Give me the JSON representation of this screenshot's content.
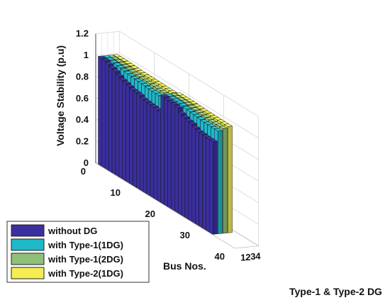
{
  "chart_data": {
    "type": "bar",
    "bar_style": "3d",
    "x_axis": {
      "label": "Bus Nos.",
      "ticks": [
        "0",
        "10",
        "20",
        "30",
        "40"
      ],
      "range": [
        0,
        40
      ]
    },
    "y_axis": {
      "label": "Type-1 & Type-2 DG",
      "ticks": [
        "1",
        "2",
        "3",
        "4"
      ]
    },
    "z_axis": {
      "label": "Voltage Stability (p.u)",
      "ticks": [
        "0",
        "0.2",
        "0.4",
        "0.6",
        "0.8",
        "1",
        "1.2"
      ],
      "range": [
        0,
        1.2
      ]
    },
    "grid": true,
    "legend": {
      "position": "bottom-left"
    },
    "categories": [
      1,
      2,
      3,
      4,
      5,
      6,
      7,
      8,
      9,
      10,
      11,
      12,
      13,
      14,
      15,
      16,
      17,
      18,
      19,
      20,
      21,
      22,
      23,
      24,
      25,
      26,
      27,
      28,
      29,
      30,
      31,
      32,
      33
    ],
    "series": [
      {
        "name": "without DG",
        "color": "#3a2f9e",
        "values": [
          1.0,
          0.997,
          0.983,
          0.968,
          0.956,
          0.933,
          0.915,
          0.906,
          0.894,
          0.882,
          0.879,
          0.874,
          0.857,
          0.851,
          0.847,
          0.845,
          0.838,
          0.835,
          0.997,
          0.987,
          0.985,
          0.984,
          0.976,
          0.94,
          0.925,
          0.91,
          0.905,
          0.885,
          0.87,
          0.867,
          0.862,
          0.861,
          0.86
        ]
      },
      {
        "name": "with Type-1(1DG)",
        "color": "#1fb8c9",
        "values": [
          1.0,
          0.999,
          0.995,
          0.99,
          0.986,
          0.978,
          0.972,
          0.969,
          0.965,
          0.961,
          0.96,
          0.958,
          0.952,
          0.95,
          0.949,
          0.948,
          0.946,
          0.945,
          0.999,
          0.996,
          0.995,
          0.995,
          0.992,
          0.98,
          0.975,
          0.97,
          0.968,
          0.962,
          0.957,
          0.956,
          0.955,
          0.954,
          0.954
        ]
      },
      {
        "name": "with Type-1(2DG)",
        "color": "#8fc07a",
        "values": [
          1.0,
          1.0,
          0.997,
          0.994,
          0.991,
          0.986,
          0.982,
          0.98,
          0.978,
          0.975,
          0.975,
          0.974,
          0.97,
          0.969,
          0.968,
          0.968,
          0.966,
          0.966,
          1.0,
          0.998,
          0.998,
          0.997,
          0.995,
          0.988,
          0.985,
          0.982,
          0.98,
          0.977,
          0.974,
          0.973,
          0.972,
          0.972,
          0.972
        ]
      },
      {
        "name": "with Type-2(1DG)",
        "color": "#f5ee52",
        "values": [
          1.0,
          1.0,
          0.999,
          0.997,
          0.996,
          0.993,
          0.991,
          0.99,
          0.989,
          0.988,
          0.988,
          0.987,
          0.985,
          0.985,
          0.984,
          0.984,
          0.984,
          0.983,
          1.0,
          0.999,
          0.999,
          0.999,
          0.998,
          0.994,
          0.993,
          0.991,
          0.991,
          0.989,
          0.988,
          0.987,
          0.987,
          0.987,
          0.987
        ]
      }
    ]
  }
}
